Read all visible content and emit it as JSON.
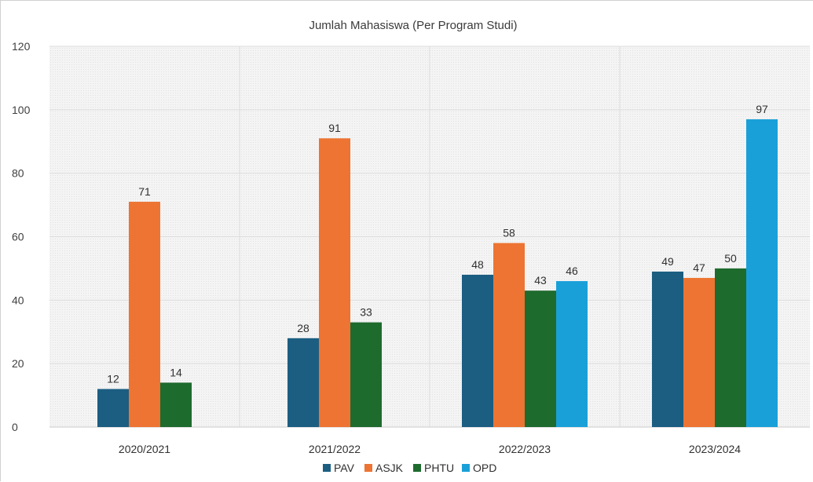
{
  "chart_data": {
    "type": "bar",
    "title": "Jumlah Mahasiswa (Per Program Studi)",
    "xlabel": "",
    "ylabel": "",
    "categories": [
      "2020/2021",
      "2021/2022",
      "2022/2023",
      "2023/2024"
    ],
    "series": [
      {
        "name": "PAV",
        "color": "#1b5e82",
        "values": [
          12,
          28,
          48,
          49
        ]
      },
      {
        "name": "ASJK",
        "color": "#ed7432",
        "values": [
          71,
          91,
          58,
          47
        ]
      },
      {
        "name": "PHTU",
        "color": "#1e6b2e",
        "values": [
          14,
          33,
          43,
          50
        ]
      },
      {
        "name": "OPD",
        "color": "#1aa0d8",
        "values": [
          null,
          null,
          46,
          97
        ]
      }
    ],
    "ylim": [
      0,
      120
    ],
    "yticks": [
      0,
      20,
      40,
      60,
      80,
      100,
      120
    ],
    "grid": true,
    "legend_position": "bottom",
    "data_labels": true
  }
}
